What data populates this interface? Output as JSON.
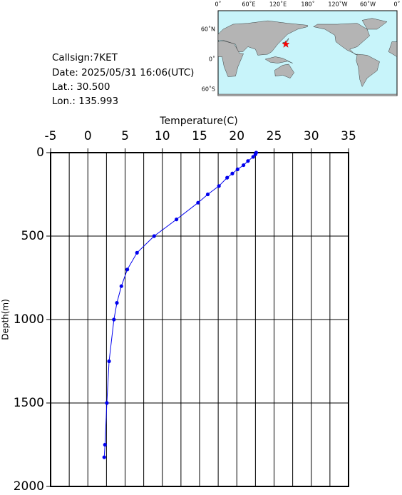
{
  "info": {
    "callsign": "Callsign:7KET",
    "date": "Date:  2025/05/31 16:06(UTC)",
    "lat": "Lat.:  30.500",
    "lon": "Lon.:  135.993"
  },
  "map": {
    "lon_labels": [
      "0˚",
      "60˚E",
      "120˚E",
      "180˚",
      "120˚W",
      "60˚W",
      "0˚"
    ],
    "lat_labels": [
      "60˚N",
      "0˚",
      "60˚S"
    ]
  },
  "chart_data": {
    "type": "line",
    "x_label": "Temperature(C)",
    "y_label": "Depth(m)",
    "x": [
      22.6,
      22.5,
      22.2,
      21.5,
      20.9,
      20.1,
      19.4,
      18.7,
      17.6,
      16.1,
      14.8,
      11.9,
      8.9,
      6.6,
      5.3,
      4.5,
      3.9,
      3.5,
      2.85,
      2.55,
      2.3,
      2.2
    ],
    "values": [
      0,
      10,
      25,
      50,
      75,
      100,
      125,
      150,
      200,
      250,
      300,
      400,
      500,
      600,
      700,
      800,
      900,
      1000,
      1250,
      1500,
      1750,
      1825
    ],
    "color": "#0000ee",
    "xlim": [
      -5,
      35
    ],
    "xticks": [
      -5,
      0,
      5,
      10,
      15,
      20,
      25,
      30,
      35
    ],
    "xgrid_minor": [
      -2.5,
      2.5,
      7.5,
      12.5,
      17.5,
      22.5,
      27.5,
      32.5
    ],
    "ylim": [
      0,
      2000
    ],
    "yticks": [
      0,
      500,
      1000,
      1500,
      2000
    ],
    "y_inverted": true,
    "grid": true
  }
}
